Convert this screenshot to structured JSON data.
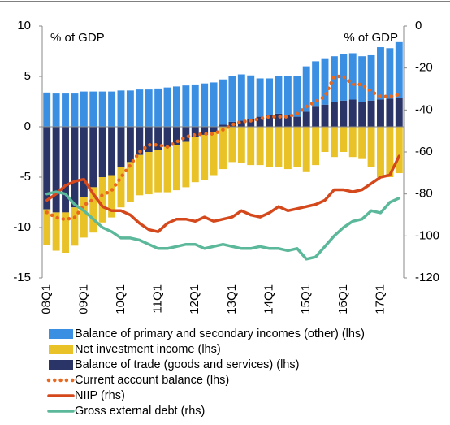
{
  "chart_data": {
    "type": "bar",
    "ylabel": "% of GDP",
    "y2label": "% of GDP",
    "categories": [
      "08Q1",
      null,
      null,
      null,
      "09Q1",
      null,
      null,
      null,
      "10Q1",
      null,
      null,
      null,
      "11Q1",
      null,
      null,
      null,
      "12Q1",
      null,
      null,
      null,
      "13Q1",
      null,
      null,
      null,
      "14Q1",
      null,
      null,
      null,
      "15Q1",
      null,
      null,
      null,
      "16Q1",
      null,
      null,
      null,
      "17Q1",
      null,
      null
    ],
    "ylim": [
      -15,
      10
    ],
    "yticks": [
      -15,
      -10,
      -5,
      0,
      5,
      10
    ],
    "y2lim": [
      -120,
      0
    ],
    "y2ticks": [
      -120,
      -100,
      -80,
      -60,
      -40,
      -20,
      0
    ],
    "series": [
      {
        "name": "Balance of primary and secondary incomes (other) (lhs)",
        "type": "bar",
        "color": "#3a8fe3",
        "values": [
          3.4,
          3.3,
          3.3,
          3.3,
          3.5,
          3.5,
          3.5,
          3.5,
          3.6,
          3.6,
          3.7,
          3.7,
          3.8,
          3.9,
          4.0,
          4.1,
          4.2,
          4.3,
          4.4,
          4.5,
          4.5,
          4.6,
          4.3,
          3.8,
          3.6,
          3.7,
          3.8,
          4.0,
          4.5,
          4.5,
          4.6,
          4.5,
          4.6,
          4.6,
          4.5,
          4.5,
          5.2,
          5.0,
          5.5
        ]
      },
      {
        "name": "Net investment income (lhs)",
        "type": "bar",
        "color": "#e8c227",
        "values": [
          -3.5,
          -3.8,
          -4.0,
          -3.8,
          -4.0,
          -4.5,
          -4.5,
          -4.2,
          -4.0,
          -4.0,
          -4.0,
          -4.2,
          -4.2,
          -4.5,
          -4.5,
          -4.5,
          -4.5,
          -4.5,
          -4.3,
          -4.2,
          -3.5,
          -3.6,
          -3.8,
          -3.8,
          -4.0,
          -4.0,
          -4.2,
          -4.0,
          -4.5,
          -3.8,
          -2.5,
          -3.0,
          -2.5,
          -3.0,
          -3.2,
          -4.0,
          -5.0,
          -5.0,
          -4.6
        ]
      },
      {
        "name": "Balance of trade (goods and services) (lhs)",
        "type": "bar",
        "color": "#2b3466",
        "values": [
          -8.2,
          -8.5,
          -8.5,
          -8.0,
          -7.0,
          -6.0,
          -5.0,
          -4.8,
          -4.0,
          -3.5,
          -2.8,
          -2.5,
          -2.3,
          -2.0,
          -1.8,
          -1.5,
          -1.0,
          -0.8,
          -0.5,
          0.2,
          0.5,
          0.6,
          0.8,
          1.0,
          1.2,
          1.3,
          1.2,
          1.0,
          1.5,
          2.0,
          2.2,
          2.5,
          2.6,
          2.7,
          2.5,
          2.6,
          2.7,
          2.8,
          2.9
        ]
      },
      {
        "name": "Current account balance (lhs)",
        "type": "line",
        "style": "dotted",
        "color": "#e8681e",
        "values": [
          -8.5,
          -9.0,
          -9.2,
          -9.0,
          -7.8,
          -7.2,
          -6.8,
          -6.3,
          -5.0,
          -3.8,
          -2.5,
          -1.8,
          -1.8,
          -2.0,
          -1.5,
          -1.0,
          -0.8,
          -0.7,
          -0.7,
          -0.3,
          0.2,
          0.5,
          0.6,
          0.8,
          1.0,
          1.0,
          1.0,
          1.3,
          2.0,
          2.5,
          3.0,
          5.0,
          5.0,
          4.2,
          4.2,
          3.5,
          3.0,
          3.0,
          3.2
        ]
      },
      {
        "name": "NIIP (rhs)",
        "type": "line",
        "style": "solid",
        "axis": "y2",
        "color": "#d4481c",
        "values": [
          -83,
          -80,
          -76,
          -74,
          -73,
          -80,
          -86,
          -88,
          -88,
          -90,
          -94,
          -97,
          -98,
          -94,
          -92,
          -92,
          -93,
          -91,
          -93,
          -92,
          -91,
          -88,
          -90,
          -91,
          -89,
          -86,
          -88,
          -87,
          -86,
          -85,
          -83,
          -78,
          -78,
          -79,
          -78,
          -75,
          -72,
          -71,
          -62
        ]
      },
      {
        "name": "Gross external debt (rhs)",
        "type": "line",
        "style": "solid",
        "axis": "y2",
        "color": "#5cb89a",
        "values": [
          -80,
          -79,
          -80,
          -85,
          -88,
          -92,
          -96,
          -98,
          -101,
          -101,
          -102,
          -104,
          -106,
          -106,
          -105,
          -104,
          -104,
          -106,
          -105,
          -104,
          -105,
          -106,
          -106,
          -105,
          -106,
          -106,
          -107,
          -106,
          -111,
          -110,
          -105,
          -100,
          -96,
          -93,
          -92,
          -88,
          -89,
          -84,
          -82
        ]
      }
    ]
  }
}
